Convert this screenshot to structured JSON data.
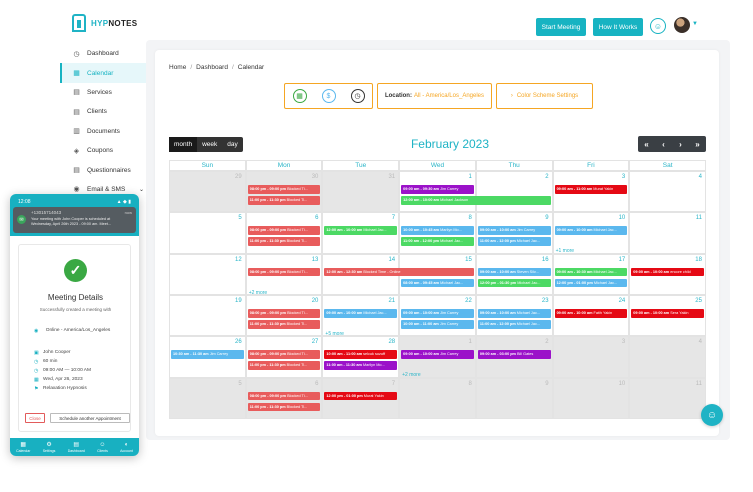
{
  "app": {
    "brand_prefix": "HYP",
    "brand_suffix": "NOTES"
  },
  "header": {
    "start_meeting": "Start Meeting",
    "how_it_works": "How It Works"
  },
  "sidebar": {
    "items": [
      {
        "label": "Dashboard",
        "icon": "dashboard-icon",
        "active": false
      },
      {
        "label": "Calendar",
        "icon": "calendar-icon",
        "active": true
      },
      {
        "label": "Services",
        "icon": "services-icon",
        "active": false
      },
      {
        "label": "Clients",
        "icon": "clients-icon",
        "active": false
      },
      {
        "label": "Documents",
        "icon": "documents-icon",
        "active": false
      },
      {
        "label": "Coupons",
        "icon": "coupons-icon",
        "active": false
      },
      {
        "label": "Questionnaires",
        "icon": "questionnaires-icon",
        "active": false
      },
      {
        "label": "Email & SMS",
        "icon": "email-icon",
        "active": false
      }
    ]
  },
  "breadcrumb": [
    "Home",
    "Dashboard",
    "Calendar"
  ],
  "location": {
    "label": "Location:",
    "value": "All - America/Los_Angeles"
  },
  "color_scheme_label": "Color Scheme Settings",
  "view_tabs": [
    "month",
    "week",
    "day"
  ],
  "calendar": {
    "title": "February 2023",
    "nav": [
      "«",
      "‹",
      "›",
      "»"
    ],
    "weekdays": [
      "Sun",
      "Mon",
      "Tue",
      "Wed",
      "Thu",
      "Fri",
      "Sat"
    ],
    "weeks": [
      [
        {
          "d": "29",
          "out": true
        },
        {
          "d": "30",
          "out": true
        },
        {
          "d": "31",
          "out": true
        },
        {
          "d": "1"
        },
        {
          "d": "2"
        },
        {
          "d": "3"
        },
        {
          "d": "4"
        }
      ],
      [
        {
          "d": "5"
        },
        {
          "d": "6"
        },
        {
          "d": "7"
        },
        {
          "d": "8"
        },
        {
          "d": "9"
        },
        {
          "d": "10"
        },
        {
          "d": "11"
        }
      ],
      [
        {
          "d": "12"
        },
        {
          "d": "13"
        },
        {
          "d": "14"
        },
        {
          "d": "15"
        },
        {
          "d": "16"
        },
        {
          "d": "17"
        },
        {
          "d": "18"
        }
      ],
      [
        {
          "d": "19"
        },
        {
          "d": "20"
        },
        {
          "d": "21"
        },
        {
          "d": "22"
        },
        {
          "d": "23"
        },
        {
          "d": "24"
        },
        {
          "d": "25"
        }
      ],
      [
        {
          "d": "26"
        },
        {
          "d": "27"
        },
        {
          "d": "28"
        },
        {
          "d": "1",
          "out": true
        },
        {
          "d": "2",
          "out": true
        },
        {
          "d": "3",
          "out": true
        },
        {
          "d": "4",
          "out": true
        }
      ],
      [
        {
          "d": "5",
          "out": true
        },
        {
          "d": "6",
          "out": true
        },
        {
          "d": "7",
          "out": true
        },
        {
          "d": "8",
          "out": true
        },
        {
          "d": "9",
          "out": true
        },
        {
          "d": "10",
          "out": true
        },
        {
          "d": "11",
          "out": true
        }
      ]
    ],
    "events": [
      {
        "w": 0,
        "c": 1,
        "slot": 0,
        "span": 1,
        "color": "red",
        "time": "08:00 pm - 09:00 pm",
        "title": "Blocked Ti..."
      },
      {
        "w": 0,
        "c": 1,
        "slot": 1,
        "span": 1,
        "color": "red",
        "time": "11:00 pm - 11:30 pm",
        "title": "Blocked Ti..."
      },
      {
        "w": 0,
        "c": 3,
        "slot": 0,
        "span": 1,
        "color": "purple",
        "time": "09:00 am - 09:30 am",
        "title": "Jim Carrey"
      },
      {
        "w": 0,
        "c": 3,
        "slot": 1,
        "span": 2,
        "color": "green",
        "time": "12:00 am - 10:00 am",
        "title": "Michael Jackson"
      },
      {
        "w": 0,
        "c": 5,
        "slot": 0,
        "span": 1,
        "color": "darkred",
        "time": "09:00 am - 11:00 am",
        "title": "Murat Yakin"
      },
      {
        "w": 1,
        "c": 1,
        "slot": 0,
        "span": 1,
        "color": "red",
        "time": "08:00 pm - 09:00 pm",
        "title": "Blocked Ti..."
      },
      {
        "w": 1,
        "c": 1,
        "slot": 1,
        "span": 1,
        "color": "red",
        "time": "11:00 pm - 11:30 pm",
        "title": "Blocked Ti..."
      },
      {
        "w": 1,
        "c": 2,
        "slot": 0,
        "span": 1,
        "color": "green",
        "time": "12:00 am - 10:00 am",
        "title": "Michael Jac..."
      },
      {
        "w": 1,
        "c": 3,
        "slot": 0,
        "span": 1,
        "color": "blue",
        "time": "10:00 am - 10:45 am",
        "title": "Marilyn Mo..."
      },
      {
        "w": 1,
        "c": 3,
        "slot": 1,
        "span": 1,
        "color": "green",
        "time": "11:00 am - 12:00 pm",
        "title": "Michael Jac..."
      },
      {
        "w": 1,
        "c": 4,
        "slot": 0,
        "span": 1,
        "color": "blue",
        "time": "09:00 am - 10:00 am",
        "title": "Jim Carrey"
      },
      {
        "w": 1,
        "c": 4,
        "slot": 1,
        "span": 1,
        "color": "blue",
        "time": "11:00 am - 12:00 pm",
        "title": "Michael Jac..."
      },
      {
        "w": 1,
        "c": 5,
        "slot": 0,
        "span": 1,
        "color": "blue",
        "time": "09:00 am - 10:00 am",
        "title": "Michael Jac..."
      },
      {
        "w": 2,
        "c": 1,
        "slot": 0,
        "span": 1,
        "color": "red",
        "time": "08:00 pm - 09:00 pm",
        "title": "Blocked Ti..."
      },
      {
        "w": 2,
        "c": 2,
        "slot": 0,
        "span": 2,
        "color": "red",
        "time": "12:00 am - 12:30 am",
        "title": "Blocked Time - Online"
      },
      {
        "w": 2,
        "c": 3,
        "slot": 1,
        "span": 1,
        "color": "blue",
        "time": "08:00 am - 09:45 am",
        "title": "Michael Jac..."
      },
      {
        "w": 2,
        "c": 4,
        "slot": 0,
        "span": 1,
        "color": "blue",
        "time": "09:00 am - 10:00 am",
        "title": "Steven Silv..."
      },
      {
        "w": 2,
        "c": 4,
        "slot": 1,
        "span": 1,
        "color": "green",
        "time": "12:00 pm - 01:30 pm",
        "title": "Michael Jac..."
      },
      {
        "w": 2,
        "c": 5,
        "slot": 0,
        "span": 1,
        "color": "green",
        "time": "09:00 am - 10:30 am",
        "title": "Michael Jac..."
      },
      {
        "w": 2,
        "c": 5,
        "slot": 1,
        "span": 1,
        "color": "blue",
        "time": "12:00 pm - 01:00 pm",
        "title": "Michael Jac..."
      },
      {
        "w": 2,
        "c": 6,
        "slot": 0,
        "span": 1,
        "color": "darkred",
        "time": "09:00 am - 10:00 am",
        "title": "encore child"
      },
      {
        "w": 3,
        "c": 1,
        "slot": 0,
        "span": 1,
        "color": "red",
        "time": "08:00 pm - 09:00 pm",
        "title": "Blocked Ti..."
      },
      {
        "w": 3,
        "c": 1,
        "slot": 1,
        "span": 1,
        "color": "red",
        "time": "11:00 pm - 11:30 pm",
        "title": "Blocked Ti..."
      },
      {
        "w": 3,
        "c": 2,
        "slot": 0,
        "span": 1,
        "color": "blue",
        "time": "09:00 am - 10:00 am",
        "title": "Michael Jac..."
      },
      {
        "w": 3,
        "c": 3,
        "slot": 0,
        "span": 1,
        "color": "blue",
        "time": "09:00 am - 10:00 am",
        "title": "Jim Carrey"
      },
      {
        "w": 3,
        "c": 3,
        "slot": 1,
        "span": 1,
        "color": "blue",
        "time": "10:00 am - 11:00 am",
        "title": "Jim Carrey"
      },
      {
        "w": 3,
        "c": 4,
        "slot": 0,
        "span": 1,
        "color": "blue",
        "time": "09:00 am - 10:00 am",
        "title": "Michael Jac..."
      },
      {
        "w": 3,
        "c": 4,
        "slot": 1,
        "span": 1,
        "color": "blue",
        "time": "11:00 am - 12:00 pm",
        "title": "Michael Jac..."
      },
      {
        "w": 3,
        "c": 5,
        "slot": 0,
        "span": 1,
        "color": "darkred",
        "time": "09:00 am - 10:00 am",
        "title": "Fatih Yakin"
      },
      {
        "w": 3,
        "c": 6,
        "slot": 0,
        "span": 1,
        "color": "darkred",
        "time": "09:00 am - 10:00 am",
        "title": "Sera Yakin"
      },
      {
        "w": 4,
        "c": 0,
        "slot": 0,
        "span": 1,
        "color": "blue",
        "time": "10:30 am - 11:30 am",
        "title": "Jim Carrey"
      },
      {
        "w": 4,
        "c": 1,
        "slot": 0,
        "span": 1,
        "color": "red",
        "time": "08:00 pm - 09:00 pm",
        "title": "Blocked Ti..."
      },
      {
        "w": 4,
        "c": 1,
        "slot": 1,
        "span": 1,
        "color": "red",
        "time": "11:00 pm - 11:30 pm",
        "title": "Blocked Ti..."
      },
      {
        "w": 4,
        "c": 2,
        "slot": 0,
        "span": 1,
        "color": "darkred",
        "time": "10:00 am - 11:00 am",
        "title": "selcuk sozuff"
      },
      {
        "w": 4,
        "c": 2,
        "slot": 1,
        "span": 1,
        "color": "purple",
        "time": "11:00 am - 11:30 am",
        "title": "Marilyn Mo..."
      },
      {
        "w": 4,
        "c": 3,
        "slot": 0,
        "span": 1,
        "color": "purple",
        "time": "09:00 am - 10:00 am",
        "title": "Jim Carrey"
      },
      {
        "w": 4,
        "c": 4,
        "slot": 0,
        "span": 1,
        "color": "purple",
        "time": "09:00 am - 03:00 pm",
        "title": "Bill Gates"
      },
      {
        "w": 5,
        "c": 1,
        "slot": 0,
        "span": 1,
        "color": "red",
        "time": "08:00 pm - 09:00 pm",
        "title": "Blocked Ti..."
      },
      {
        "w": 5,
        "c": 1,
        "slot": 1,
        "span": 1,
        "color": "red",
        "time": "11:00 pm - 11:30 pm",
        "title": "Blocked Ti..."
      },
      {
        "w": 5,
        "c": 2,
        "slot": 0,
        "span": 1,
        "color": "darkred",
        "time": "12:00 pm - 01:00 pm",
        "title": "Murat Yakin"
      }
    ],
    "more": [
      {
        "w": 1,
        "c": 5,
        "label": "+1 more"
      },
      {
        "w": 2,
        "c": 1,
        "label": "+2 more"
      },
      {
        "w": 3,
        "c": 2,
        "label": "+5 more"
      },
      {
        "w": 4,
        "c": 3,
        "label": "+2 more"
      }
    ]
  },
  "colors": {
    "red": "#e85c5c",
    "darkred": "#e50914",
    "green": "#4cd964",
    "blue": "#5bb8ee",
    "purple": "#9b12c9",
    "accent": "#17b3c2",
    "orange": "#f5a623"
  },
  "phone": {
    "time": "12:08",
    "signal": "▲ ◆ ▮",
    "notif_number": "+13015714043",
    "notif_time": "now",
    "notif_text": "Your meeting with John Cooper is scheduled at Wednesday, April 26th 2023 - 09:00 am. Meet...",
    "title": "Meeting Details",
    "subtitle": "Successfully created a meeting with",
    "rows": [
      {
        "icon": "◉",
        "text": "Online - America/Los_Angeles"
      },
      {
        "icon": "▣",
        "text": "John Cooper"
      },
      {
        "icon": "◷",
        "text": "60 min"
      },
      {
        "icon": "◷",
        "text": "09:00 AM — 10:00 AM"
      },
      {
        "icon": "▦",
        "text": "Wed, Apr 26, 2023"
      },
      {
        "icon": "⚑",
        "text": "Relaxation Hypnosis"
      }
    ],
    "close": "Close",
    "schedule": "Schedule another Appointment",
    "nav": [
      {
        "icon": "▦",
        "label": "Calendar"
      },
      {
        "icon": "⚙",
        "label": "Settings"
      },
      {
        "icon": "▤",
        "label": "Dashboard"
      },
      {
        "icon": "☺",
        "label": "Clients"
      },
      {
        "icon": "◐",
        "label": "Account"
      }
    ]
  }
}
